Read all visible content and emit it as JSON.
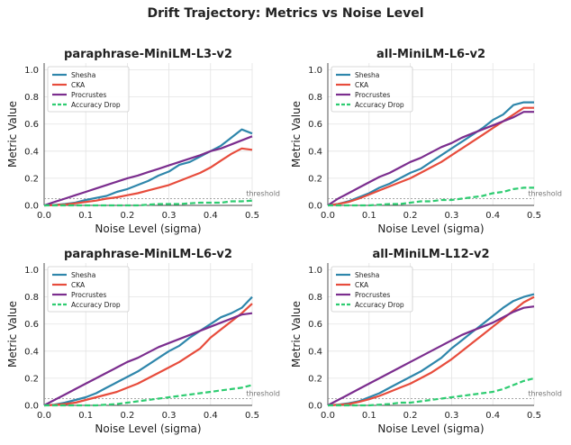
{
  "figure": {
    "title": "Drift Trajectory: Metrics vs Noise Level"
  },
  "chart_data": [
    {
      "type": "line",
      "title": "paraphrase-MiniLM-L3-v2",
      "xlabel": "Noise Level (sigma)",
      "ylabel": "Metric Value",
      "xlim": [
        0,
        0.5
      ],
      "ylim": [
        0,
        1.05
      ],
      "xticks": [
        "0.0",
        "0.1",
        "0.2",
        "0.3",
        "0.4",
        "0.5"
      ],
      "yticks": [
        "0.0",
        "0.2",
        "0.4",
        "0.6",
        "0.8",
        "1.0"
      ],
      "threshold": {
        "value": 0.05,
        "label": "threshold"
      },
      "legend": [
        "Shesha",
        "CKA",
        "Procrustes",
        "Accuracy Drop"
      ],
      "x": [
        0.0,
        0.025,
        0.05,
        0.075,
        0.1,
        0.125,
        0.15,
        0.175,
        0.2,
        0.225,
        0.25,
        0.275,
        0.3,
        0.325,
        0.35,
        0.375,
        0.4,
        0.425,
        0.45,
        0.475,
        0.5
      ],
      "series": [
        {
          "name": "Shesha",
          "color": "#2e86ab",
          "style": "solid",
          "values": [
            0.0,
            0.003,
            0.01,
            0.02,
            0.04,
            0.055,
            0.07,
            0.1,
            0.12,
            0.15,
            0.18,
            0.22,
            0.25,
            0.3,
            0.32,
            0.36,
            0.4,
            0.44,
            0.5,
            0.56,
            0.53
          ]
        },
        {
          "name": "CKA",
          "color": "#e74c3c",
          "style": "solid",
          "values": [
            0.0,
            0.002,
            0.006,
            0.015,
            0.025,
            0.035,
            0.05,
            0.06,
            0.075,
            0.09,
            0.11,
            0.13,
            0.15,
            0.18,
            0.21,
            0.24,
            0.28,
            0.33,
            0.38,
            0.42,
            0.41
          ]
        },
        {
          "name": "Procrustes",
          "color": "#7b2d8e",
          "style": "solid",
          "values": [
            0.0,
            0.025,
            0.05,
            0.075,
            0.1,
            0.125,
            0.15,
            0.175,
            0.2,
            0.22,
            0.245,
            0.27,
            0.295,
            0.32,
            0.345,
            0.37,
            0.4,
            0.42,
            0.45,
            0.48,
            0.51
          ]
        },
        {
          "name": "Accuracy Drop",
          "color": "#2ecc71",
          "style": "dashed",
          "values": [
            0.0,
            0.0,
            0.0,
            0.0,
            0.0,
            0.0,
            0.0,
            0.0,
            0.0,
            0.0,
            0.005,
            0.01,
            0.01,
            0.01,
            0.015,
            0.02,
            0.02,
            0.02,
            0.03,
            0.03,
            0.035
          ]
        }
      ]
    },
    {
      "type": "line",
      "title": "all-MiniLM-L6-v2",
      "xlabel": "Noise Level (sigma)",
      "ylabel": "Metric Value",
      "xlim": [
        0,
        0.5
      ],
      "ylim": [
        0,
        1.05
      ],
      "xticks": [
        "0.0",
        "0.1",
        "0.2",
        "0.3",
        "0.4",
        "0.5"
      ],
      "yticks": [
        "0.0",
        "0.2",
        "0.4",
        "0.6",
        "0.8",
        "1.0"
      ],
      "threshold": {
        "value": 0.05,
        "label": "threshold"
      },
      "legend": [
        "Shesha",
        "CKA",
        "Procrustes",
        "Accuracy Drop"
      ],
      "x": [
        0.0,
        0.025,
        0.05,
        0.075,
        0.1,
        0.125,
        0.15,
        0.175,
        0.2,
        0.225,
        0.25,
        0.275,
        0.3,
        0.325,
        0.35,
        0.375,
        0.4,
        0.425,
        0.45,
        0.475,
        0.5
      ],
      "series": [
        {
          "name": "Shesha",
          "color": "#2e86ab",
          "style": "solid",
          "values": [
            0.0,
            0.01,
            0.03,
            0.06,
            0.09,
            0.13,
            0.16,
            0.2,
            0.24,
            0.27,
            0.32,
            0.37,
            0.42,
            0.47,
            0.52,
            0.57,
            0.63,
            0.67,
            0.74,
            0.76,
            0.76
          ]
        },
        {
          "name": "CKA",
          "color": "#e74c3c",
          "style": "solid",
          "values": [
            0.0,
            0.01,
            0.025,
            0.05,
            0.08,
            0.11,
            0.14,
            0.17,
            0.2,
            0.24,
            0.28,
            0.32,
            0.37,
            0.42,
            0.47,
            0.52,
            0.57,
            0.62,
            0.67,
            0.72,
            0.72
          ]
        },
        {
          "name": "Procrustes",
          "color": "#7b2d8e",
          "style": "solid",
          "values": [
            0.0,
            0.05,
            0.09,
            0.13,
            0.17,
            0.21,
            0.24,
            0.28,
            0.32,
            0.35,
            0.39,
            0.43,
            0.46,
            0.5,
            0.53,
            0.56,
            0.59,
            0.62,
            0.65,
            0.69,
            0.69
          ]
        },
        {
          "name": "Accuracy Drop",
          "color": "#2ecc71",
          "style": "dashed",
          "values": [
            0.0,
            0.0,
            0.0,
            0.0,
            0.0,
            0.005,
            0.01,
            0.01,
            0.02,
            0.03,
            0.03,
            0.04,
            0.04,
            0.05,
            0.06,
            0.07,
            0.09,
            0.1,
            0.12,
            0.13,
            0.13
          ]
        }
      ]
    },
    {
      "type": "line",
      "title": "paraphrase-MiniLM-L6-v2",
      "xlabel": "Noise Level (sigma)",
      "ylabel": "Metric Value",
      "xlim": [
        0,
        0.5
      ],
      "ylim": [
        0,
        1.05
      ],
      "xticks": [
        "0.0",
        "0.1",
        "0.2",
        "0.3",
        "0.4",
        "0.5"
      ],
      "yticks": [
        "0.0",
        "0.2",
        "0.4",
        "0.6",
        "0.8",
        "1.0"
      ],
      "threshold": {
        "value": 0.05,
        "label": "threshold"
      },
      "legend": [
        "Shesha",
        "CKA",
        "Procrustes",
        "Accuracy Drop"
      ],
      "x": [
        0.0,
        0.025,
        0.05,
        0.075,
        0.1,
        0.125,
        0.15,
        0.175,
        0.2,
        0.225,
        0.25,
        0.275,
        0.3,
        0.325,
        0.35,
        0.375,
        0.4,
        0.425,
        0.45,
        0.475,
        0.5
      ],
      "series": [
        {
          "name": "Shesha",
          "color": "#2e86ab",
          "style": "solid",
          "values": [
            0.0,
            0.005,
            0.02,
            0.04,
            0.06,
            0.09,
            0.13,
            0.17,
            0.21,
            0.25,
            0.3,
            0.35,
            0.4,
            0.44,
            0.5,
            0.55,
            0.6,
            0.65,
            0.68,
            0.72,
            0.8
          ]
        },
        {
          "name": "CKA",
          "color": "#e74c3c",
          "style": "solid",
          "values": [
            0.0,
            0.003,
            0.01,
            0.02,
            0.04,
            0.06,
            0.08,
            0.1,
            0.13,
            0.16,
            0.2,
            0.24,
            0.28,
            0.32,
            0.37,
            0.42,
            0.5,
            0.56,
            0.62,
            0.68,
            0.75
          ]
        },
        {
          "name": "Procrustes",
          "color": "#7b2d8e",
          "style": "solid",
          "values": [
            0.0,
            0.04,
            0.08,
            0.12,
            0.16,
            0.2,
            0.24,
            0.28,
            0.32,
            0.35,
            0.39,
            0.43,
            0.46,
            0.49,
            0.52,
            0.55,
            0.58,
            0.61,
            0.64,
            0.67,
            0.68
          ]
        },
        {
          "name": "Accuracy Drop",
          "color": "#2ecc71",
          "style": "dashed",
          "values": [
            0.0,
            0.0,
            0.0,
            0.0,
            0.0,
            0.0,
            0.005,
            0.01,
            0.02,
            0.03,
            0.04,
            0.05,
            0.06,
            0.07,
            0.08,
            0.09,
            0.1,
            0.11,
            0.12,
            0.13,
            0.15
          ]
        }
      ]
    },
    {
      "type": "line",
      "title": "all-MiniLM-L12-v2",
      "xlabel": "Noise Level (sigma)",
      "ylabel": "Metric Value",
      "xlim": [
        0,
        0.5
      ],
      "ylim": [
        0,
        1.05
      ],
      "xticks": [
        "0.0",
        "0.1",
        "0.2",
        "0.3",
        "0.4",
        "0.5"
      ],
      "yticks": [
        "0.0",
        "0.2",
        "0.4",
        "0.6",
        "0.8",
        "1.0"
      ],
      "threshold": {
        "value": 0.05,
        "label": "threshold"
      },
      "legend": [
        "Shesha",
        "CKA",
        "Procrustes",
        "Accuracy Drop"
      ],
      "x": [
        0.0,
        0.025,
        0.05,
        0.075,
        0.1,
        0.125,
        0.15,
        0.175,
        0.2,
        0.225,
        0.25,
        0.275,
        0.3,
        0.325,
        0.35,
        0.375,
        0.4,
        0.425,
        0.45,
        0.475,
        0.5
      ],
      "series": [
        {
          "name": "Shesha",
          "color": "#2e86ab",
          "style": "solid",
          "values": [
            0.0,
            0.005,
            0.015,
            0.03,
            0.06,
            0.09,
            0.13,
            0.17,
            0.21,
            0.25,
            0.3,
            0.35,
            0.42,
            0.48,
            0.54,
            0.6,
            0.66,
            0.72,
            0.77,
            0.8,
            0.82
          ]
        },
        {
          "name": "CKA",
          "color": "#e74c3c",
          "style": "solid",
          "values": [
            0.0,
            0.004,
            0.01,
            0.025,
            0.045,
            0.07,
            0.1,
            0.13,
            0.16,
            0.2,
            0.24,
            0.29,
            0.34,
            0.4,
            0.46,
            0.52,
            0.58,
            0.64,
            0.7,
            0.76,
            0.8
          ]
        },
        {
          "name": "Procrustes",
          "color": "#7b2d8e",
          "style": "solid",
          "values": [
            0.0,
            0.04,
            0.08,
            0.12,
            0.16,
            0.2,
            0.24,
            0.28,
            0.32,
            0.36,
            0.4,
            0.44,
            0.48,
            0.52,
            0.55,
            0.58,
            0.61,
            0.65,
            0.69,
            0.72,
            0.73
          ]
        },
        {
          "name": "Accuracy Drop",
          "color": "#2ecc71",
          "style": "dashed",
          "values": [
            0.0,
            0.0,
            0.0,
            0.0,
            0.0,
            0.005,
            0.01,
            0.02,
            0.02,
            0.03,
            0.04,
            0.05,
            0.06,
            0.07,
            0.08,
            0.09,
            0.1,
            0.12,
            0.15,
            0.18,
            0.2
          ]
        }
      ]
    }
  ]
}
